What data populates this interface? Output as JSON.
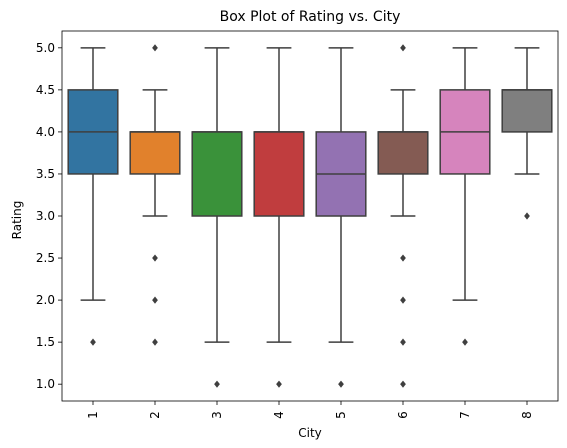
{
  "chart_data": {
    "type": "box",
    "title": "Box Plot of Rating vs. City",
    "xlabel": "City",
    "ylabel": "Rating",
    "ylim": [
      0.8,
      5.2
    ],
    "yticks": [
      "1.0",
      "1.5",
      "2.0",
      "2.5",
      "3.0",
      "3.5",
      "4.0",
      "4.5",
      "5.0"
    ],
    "categories": [
      "1",
      "2",
      "3",
      "4",
      "5",
      "6",
      "7",
      "8"
    ],
    "grid": false,
    "boxes": [
      {
        "category": "1",
        "color": "#3274a1",
        "whisker_low": 2.0,
        "q1": 3.5,
        "median": 4.0,
        "q3": 4.5,
        "whisker_high": 5.0,
        "outliers": [
          1.5
        ]
      },
      {
        "category": "2",
        "color": "#e1812c",
        "whisker_low": 3.0,
        "q1": 3.5,
        "median": 4.0,
        "q3": 4.0,
        "whisker_high": 4.5,
        "outliers": [
          5.0,
          2.5,
          2.0,
          1.5
        ]
      },
      {
        "category": "3",
        "color": "#3a923a",
        "whisker_low": 1.5,
        "q1": 3.0,
        "median": 4.0,
        "q3": 4.0,
        "whisker_high": 5.0,
        "outliers": [
          1.0
        ]
      },
      {
        "category": "4",
        "color": "#c03d3e",
        "whisker_low": 1.5,
        "q1": 3.0,
        "median": 4.0,
        "q3": 4.0,
        "whisker_high": 5.0,
        "outliers": [
          1.0
        ]
      },
      {
        "category": "5",
        "color": "#9372b2",
        "whisker_low": 1.5,
        "q1": 3.0,
        "median": 3.5,
        "q3": 4.0,
        "whisker_high": 5.0,
        "outliers": [
          1.0
        ]
      },
      {
        "category": "6",
        "color": "#845b53",
        "whisker_low": 3.0,
        "q1": 3.5,
        "median": 4.0,
        "q3": 4.0,
        "whisker_high": 4.5,
        "outliers": [
          5.0,
          2.5,
          2.0,
          1.5,
          1.0
        ]
      },
      {
        "category": "7",
        "color": "#d684bd",
        "whisker_low": 2.0,
        "q1": 3.5,
        "median": 4.0,
        "q3": 4.5,
        "whisker_high": 5.0,
        "outliers": [
          1.5
        ]
      },
      {
        "category": "8",
        "color": "#7f7f7f",
        "whisker_low": 3.5,
        "q1": 4.0,
        "median": 4.5,
        "q3": 4.5,
        "whisker_high": 5.0,
        "outliers": [
          3.0
        ]
      }
    ]
  }
}
